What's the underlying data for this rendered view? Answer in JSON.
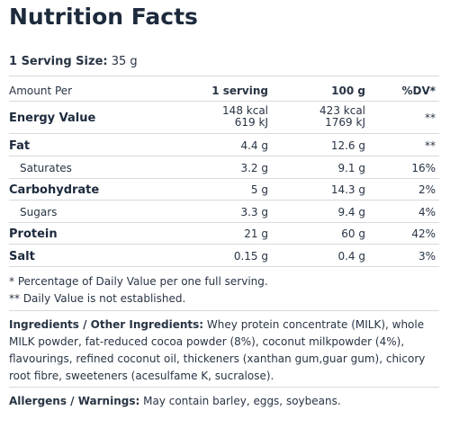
{
  "title": "Nutrition Facts",
  "serving": {
    "label": "1 Serving Size:",
    "value": "35 g"
  },
  "table": {
    "headers": {
      "name": "Amount Per",
      "serving": "1 serving",
      "per100": "100 g",
      "dv": "%DV*"
    },
    "rows": [
      {
        "name": "Energy Value",
        "serving": [
          "148 kcal",
          "619 kJ"
        ],
        "per100": [
          "423 kcal",
          "1769 kJ"
        ],
        "dv": "**"
      },
      {
        "name": "Fat",
        "serving": "4.4 g",
        "per100": "12.6 g",
        "dv": "**"
      },
      {
        "name": "Saturates",
        "serving": "3.2 g",
        "per100": "9.1 g",
        "dv": "16%"
      },
      {
        "name": "Carbohydrate",
        "serving": "5 g",
        "per100": "14.3 g",
        "dv": "2%"
      },
      {
        "name": "Sugars",
        "serving": "3.3 g",
        "per100": "9.4 g",
        "dv": "4%"
      },
      {
        "name": "Protein",
        "serving": "21 g",
        "per100": "60 g",
        "dv": "42%"
      },
      {
        "name": "Salt",
        "serving": "0.15 g",
        "per100": "0.4 g",
        "dv": "3%"
      }
    ]
  },
  "footnotes": [
    "* Percentage of Daily Value per one full serving.",
    "** Daily Value is not established."
  ],
  "ingredients": {
    "label": "Ingredients / Other Ingredients:",
    "text": "Whey protein concentrate (MILK), whole MILK powder, fat-reduced cocoa powder  (8%), coconut milkpowder  (4%), flavourings, refined coconut oil, thickeners  (xanthan gum,guar gum), chicory root fibre, sweeteners  (acesulfame K, sucralose)."
  },
  "allergens": {
    "label": "Allergens / Warnings:",
    "text": "May contain barley, eggs, soybeans."
  }
}
